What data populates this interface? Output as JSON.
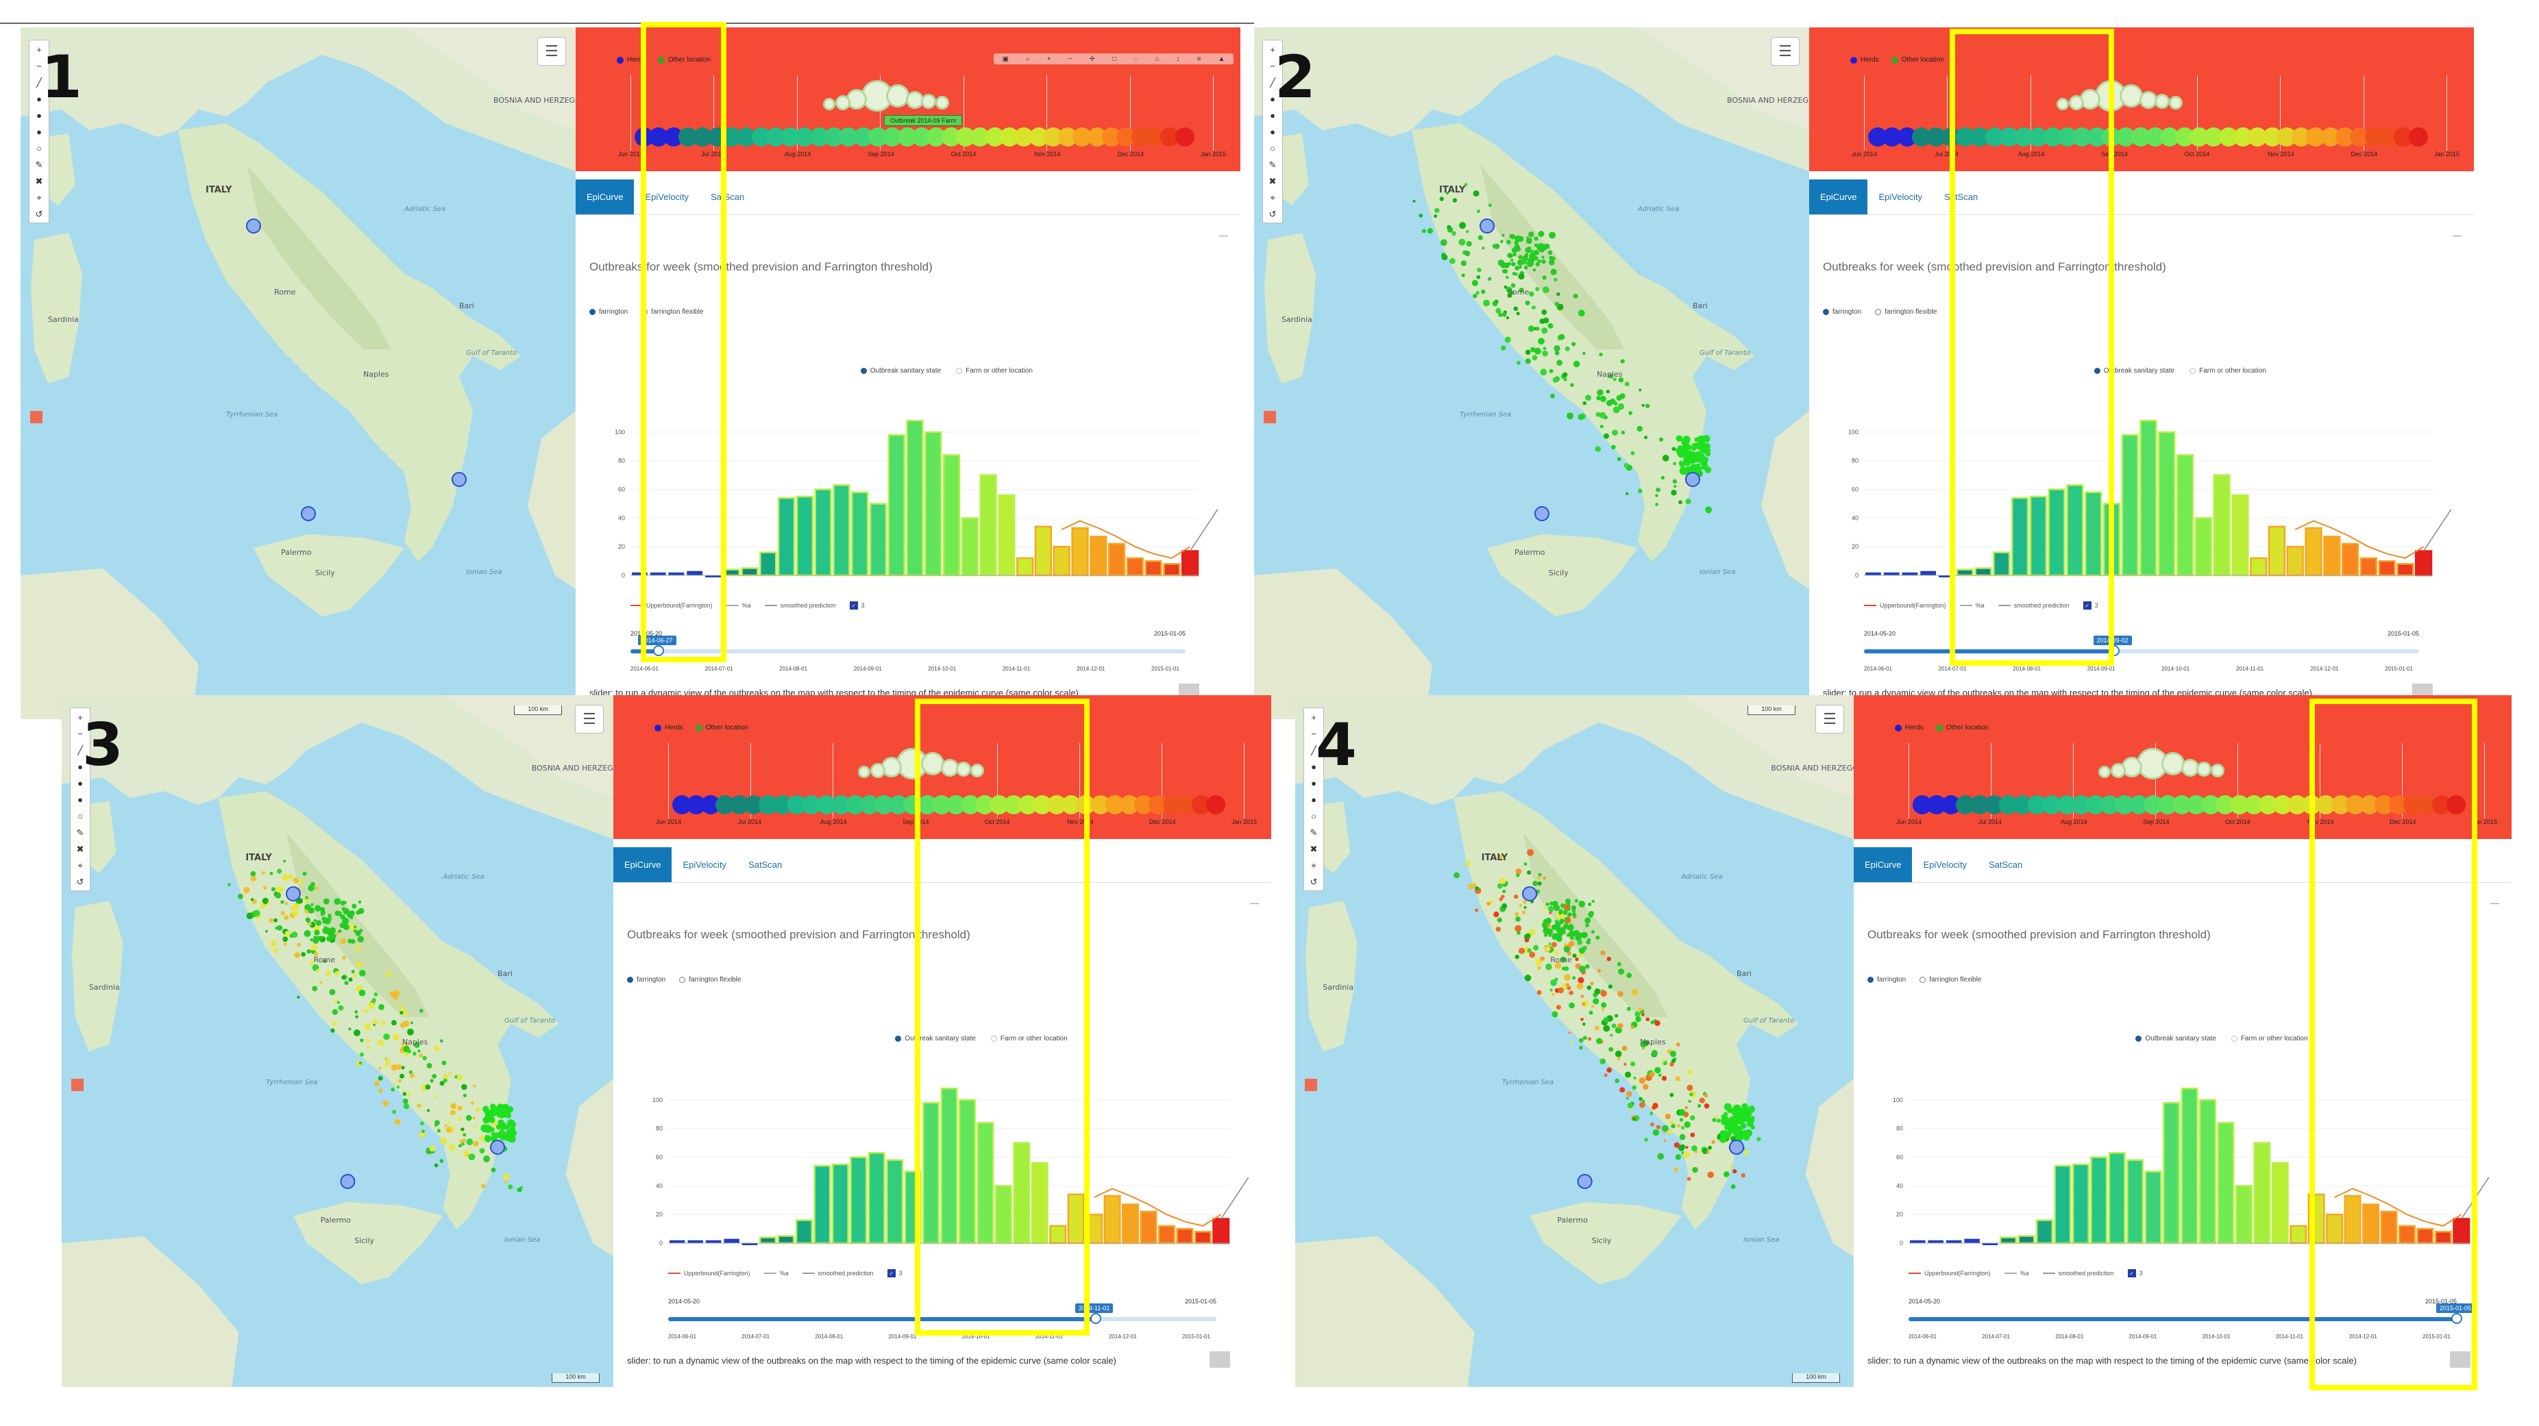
{
  "panels": [
    {
      "number": "1",
      "bubble_progress": 0.18
    },
    {
      "number": "2",
      "bubble_progress": 0.52
    },
    {
      "number": "3",
      "bubble_progress": 0.72
    },
    {
      "number": "4",
      "bubble_progress": 1.0
    }
  ],
  "map": {
    "labels": [
      "ITALY",
      "BOSNIA AND HERZEGOVINA",
      "Tyrrhenian Sea",
      "Ionian Sea",
      "Adriatic Sea",
      "Gulf of Taranto",
      "Sicily",
      "Sardinia",
      "Rome",
      "Naples",
      "Palermo",
      "Bari"
    ],
    "scale": "100 km"
  },
  "timeline": {
    "legend": [
      {
        "label": "Herds",
        "color": "#1f1fd0"
      },
      {
        "label": "Other location",
        "color": "#2ea82e"
      }
    ],
    "months": [
      "Jun 2014",
      "Jul 2014",
      "Aug 2014",
      "Sep 2014",
      "Oct 2014",
      "Nov 2014",
      "Dec 2014",
      "Jan 2015"
    ],
    "tooltip": "Outbreak 2014-09 Farm",
    "toolbar_icons": [
      "camera-icon",
      "zoom-icon",
      "plus-icon",
      "minus-icon",
      "pan-icon",
      "box-icon",
      "lasso-icon",
      "reset-icon",
      "spike-icon",
      "compare-icon",
      "plotly-icon"
    ]
  },
  "tabs": [
    "EpiCurve",
    "EpiVelocity",
    "SatScan"
  ],
  "chart_title": "Outbreaks for week (smoothed prevision and Farrington threshold)",
  "radio_options": [
    {
      "label": "farrington",
      "selected": true
    },
    {
      "label": "farrington flexible",
      "selected": false
    }
  ],
  "chart_legend": [
    {
      "label": "Outbreak sanitary state",
      "color": "#1d5b9a"
    },
    {
      "label": "Farm or other location",
      "color": "#bbbbbb"
    }
  ],
  "series_legend": [
    {
      "label": "Upperbound(Farrington)",
      "color": "#e24a33"
    },
    {
      "label": "%a",
      "color": "#aaaaaa"
    },
    {
      "label": "smoothed prediction",
      "color": "#999999"
    },
    {
      "label": "3",
      "color": "#1e3ea8"
    }
  ],
  "slider": {
    "start": "2014-05-20",
    "end": "2015-01-05",
    "handles": [
      "2014-06-27",
      "2014-09-02",
      "2014-11-01",
      "2015-01-05"
    ],
    "progress": [
      0.05,
      0.45,
      0.78,
      1.0
    ],
    "ticks": [
      "2014-06-01",
      "2014-07-01",
      "2014-08-01",
      "2014-09-01",
      "2014-10-01",
      "2014-11-01",
      "2014-12-01",
      "2015-01-01"
    ]
  },
  "caption": "slider: to run a dynamic view of the outbreaks on the map with respect to the timing of the epidemic curve (same color scale)",
  "chart_data": {
    "type": "bar",
    "title": "Outbreaks for week (smoothed prevision and Farrington threshold)",
    "y_ticks": [
      "0",
      "20",
      "40",
      "60",
      "80",
      "100"
    ],
    "ylim": [
      0,
      110
    ],
    "values": [
      2,
      2,
      2,
      3,
      0,
      4,
      5,
      16,
      54,
      55,
      60,
      63,
      58,
      50,
      98,
      108,
      100,
      84,
      40,
      70,
      56,
      12,
      34,
      20,
      33,
      27,
      22,
      12,
      10,
      8,
      17
    ],
    "colors": [
      "#1f3fbf",
      "#1f3fbf",
      "#1f3fbf",
      "#1f3fbf",
      "#1f3fbf",
      "#16867a",
      "#16867a",
      "#17a684",
      "#1dba8c",
      "#22c08a",
      "#26c486",
      "#2cc981",
      "#33cd7c",
      "#3bd27a",
      "#4edd6a",
      "#55e062",
      "#62e55a",
      "#72ea52",
      "#8ced47",
      "#a5ef3c",
      "#b9ee34",
      "#c9ec2f",
      "#d8e32b",
      "#e5d227",
      "#f0bd23",
      "#f6a420",
      "#f8881e",
      "#f56d1d",
      "#f0501c",
      "#ea361b",
      "#e3201b"
    ],
    "farrington": [
      null,
      null,
      null,
      null,
      null,
      null,
      null,
      null,
      null,
      null,
      null,
      null,
      null,
      null,
      null,
      null,
      null,
      null,
      null,
      null,
      null,
      null,
      null,
      32,
      38,
      33,
      27,
      20,
      15,
      12,
      20
    ],
    "smoothed": [
      null,
      null,
      null,
      null,
      null,
      null,
      null,
      null,
      null,
      null,
      null,
      null,
      null,
      null,
      null,
      null,
      null,
      null,
      null,
      null,
      null,
      null,
      null,
      null,
      null,
      null,
      null,
      null,
      null,
      null,
      34
    ],
    "xlabel": "",
    "ylabel": ""
  }
}
